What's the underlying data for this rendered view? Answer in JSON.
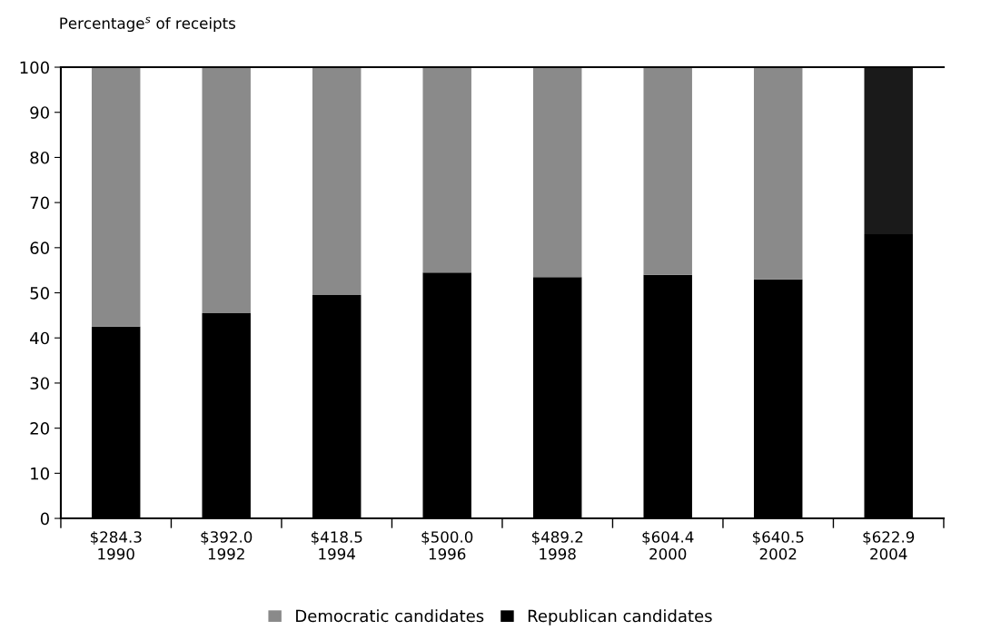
{
  "chart_data": {
    "type": "bar",
    "stacked": true,
    "ylabel": "Percentage$^{s}$ of receipts",
    "categories": [
      "$284.3\n1990",
      "$392.0\n1992",
      "$418.5\n1994",
      "$500.0\n1996",
      "$489.2\n1998",
      "$604.4\n2000",
      "$640.5\n2002",
      "$622.9\n2004"
    ],
    "series": [
      {
        "name": "Republican candidates",
        "color": "#000000",
        "values": [
          42.5,
          45.5,
          49.5,
          54.5,
          53.5,
          54,
          53,
          63
        ]
      },
      {
        "name": "Democratic candidates",
        "color": "#8a8a8a",
        "colors": [
          "#8a8a8a",
          "#8a8a8a",
          "#8a8a8a",
          "#8a8a8a",
          "#8a8a8a",
          "#8a8a8a",
          "#8a8a8a",
          "#1a1a1a"
        ],
        "values": [
          57.5,
          54.5,
          50.5,
          45.5,
          46.5,
          46,
          47,
          37
        ]
      }
    ],
    "ylim": [
      0,
      100
    ],
    "yticks": [
      0,
      10,
      20,
      30,
      40,
      50,
      60,
      70,
      80,
      90,
      100
    ],
    "legend": "bottom",
    "grid": false
  }
}
